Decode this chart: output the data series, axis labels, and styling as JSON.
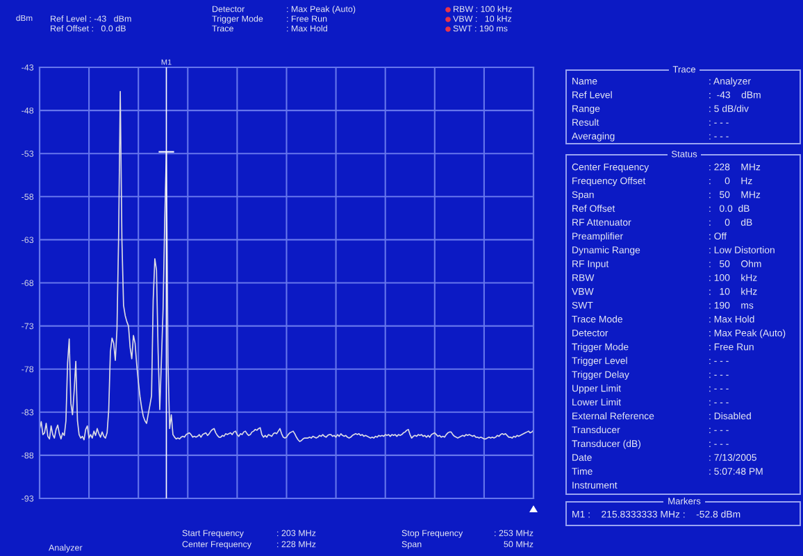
{
  "chart_data": {
    "type": "line",
    "color": "#dcdce4",
    "line_style": "solid",
    "categories": [
      null,
      null,
      null,
      null,
      null,
      null,
      null,
      null,
      null,
      null,
      null,
      null,
      null,
      null,
      null,
      null,
      null,
      null,
      null,
      null,
      null,
      null,
      null,
      null,
      null,
      null,
      null,
      null,
      null,
      null,
      null,
      null,
      null,
      null,
      null,
      null,
      null,
      null,
      null,
      null,
      null,
      null,
      null,
      null,
      null,
      null,
      null,
      null,
      null,
      null,
      null,
      null,
      null,
      null,
      null,
      null,
      null,
      null,
      null,
      null,
      null,
      null,
      null,
      null,
      null,
      null,
      null,
      null,
      null,
      null,
      null,
      null,
      null,
      null,
      null,
      null,
      null,
      "M1",
      null,
      null,
      null,
      null,
      null,
      null,
      null,
      null,
      null,
      null,
      null,
      null,
      null,
      null,
      null,
      null,
      null,
      null,
      null,
      null,
      null,
      null,
      null,
      null,
      null,
      null,
      null,
      null,
      null,
      null,
      null,
      null,
      null,
      null,
      null,
      null,
      null,
      null,
      null,
      null,
      null,
      null,
      null,
      null,
      null,
      null,
      null,
      null,
      null,
      null,
      null,
      null,
      null,
      null,
      null,
      null,
      null,
      null,
      null,
      null,
      null,
      null,
      null,
      null,
      null,
      null,
      null,
      null,
      null,
      null,
      null,
      null,
      null,
      null,
      null,
      null,
      null,
      null,
      null,
      null,
      null,
      null,
      null,
      null,
      null,
      null,
      null,
      null,
      null,
      null,
      null,
      null,
      null,
      null,
      null,
      null,
      null,
      null,
      null,
      null,
      null,
      null,
      null,
      null,
      null,
      null,
      null,
      null,
      null,
      null,
      null,
      null,
      null,
      null,
      null,
      null,
      null,
      null,
      null,
      null,
      null,
      null,
      null,
      null,
      null,
      null,
      null,
      null,
      null,
      null,
      null,
      null,
      null,
      null,
      null,
      null,
      null,
      null,
      null,
      null,
      null,
      null,
      null,
      null,
      null,
      null,
      null,
      null,
      null,
      null,
      null,
      null,
      null,
      null,
      null,
      null,
      null,
      null,
      null,
      null,
      null,
      null,
      null,
      null,
      null,
      null,
      null,
      null,
      null,
      null,
      null,
      null,
      null,
      null,
      null,
      null,
      null,
      null,
      null,
      null,
      null,
      null,
      null,
      null,
      null,
      null,
      null,
      null,
      null,
      null,
      null,
      null,
      null,
      null,
      null,
      null,
      null,
      null,
      null,
      null,
      null,
      null,
      null,
      null,
      null,
      null,
      null,
      null,
      null,
      null,
      null,
      null,
      null,
      null,
      null,
      null,
      null,
      null,
      null,
      null,
      null,
      null,
      null
    ],
    "values": [
      -85.0,
      -84.1,
      -85.6,
      -85.4,
      -84.3,
      -85.8,
      -86.1,
      -84.6,
      -85.6,
      -86.0,
      -85.0,
      -84.5,
      -85.5,
      -86.1,
      -85.4,
      -85.7,
      -84.0,
      -77.3,
      -74.5,
      -82.0,
      -83.3,
      -80.5,
      -77.1,
      -84.0,
      -85.6,
      -86.0,
      -85.8,
      -86.2,
      -85.0,
      -84.6,
      -86.0,
      -85.6,
      -86.0,
      -85.2,
      -85.7,
      -84.9,
      -85.5,
      -85.9,
      -85.3,
      -85.8,
      -86.0,
      -85.4,
      -82.7,
      -76.0,
      -74.4,
      -75.0,
      -77.0,
      -73.4,
      -62.7,
      -45.8,
      -63.0,
      -70.6,
      -71.8,
      -72.5,
      -73.0,
      -75.5,
      -76.8,
      -74.1,
      -75.0,
      -77.5,
      -79.5,
      -81.2,
      -82.5,
      -83.5,
      -84.0,
      -84.3,
      -83.2,
      -82.2,
      -81.1,
      -70.0,
      -65.2,
      -66.5,
      -76.0,
      -82.7,
      -77.0,
      -71.1,
      -60.8,
      -52.8,
      -77.3,
      -84.9,
      -83.3,
      -85.6,
      -85.9,
      -86.1,
      -86.0,
      -86.1,
      -85.9,
      -85.8,
      -85.9,
      -85.6,
      -85.5,
      -85.4,
      -85.6,
      -85.9,
      -85.8,
      -85.9,
      -85.8,
      -85.6,
      -85.9,
      -85.6,
      -85.5,
      -85.4,
      -85.7,
      -85.5,
      -85.2,
      -85.0,
      -84.9,
      -85.4,
      -85.7,
      -85.9,
      -85.9,
      -85.7,
      -85.8,
      -85.5,
      -85.6,
      -85.5,
      -85.4,
      -85.6,
      -85.3,
      -85.2,
      -85.6,
      -85.8,
      -85.5,
      -85.6,
      -85.3,
      -85.2,
      -85.5,
      -85.7,
      -85.6,
      -85.3,
      -85.2,
      -85.0,
      -85.1,
      -84.9,
      -84.8,
      -85.6,
      -85.9,
      -85.7,
      -85.9,
      -85.6,
      -85.7,
      -85.8,
      -85.5,
      -85.4,
      -85.5,
      -85.2,
      -84.9,
      -85.5,
      -85.9,
      -86.0,
      -85.9,
      -85.6,
      -85.4,
      -85.3,
      -85.2,
      -85.5,
      -85.9,
      -86.2,
      -86.4,
      -86.3,
      -86.1,
      -86.0,
      -86.0,
      -86.0,
      -85.9,
      -86.0,
      -85.8,
      -85.9,
      -86.0,
      -85.9,
      -85.7,
      -85.8,
      -85.6,
      -85.8,
      -85.9,
      -85.7,
      -85.6,
      -85.6,
      -85.8,
      -85.7,
      -85.9,
      -85.6,
      -85.8,
      -85.5,
      -85.7,
      -85.8,
      -85.7,
      -85.9,
      -86.0,
      -85.9,
      -85.7,
      -85.6,
      -85.5,
      -85.6,
      -85.5,
      -85.7,
      -85.6,
      -85.8,
      -85.7,
      -85.8,
      -85.9,
      -86.0,
      -85.9,
      -86.0,
      -85.8,
      -85.9,
      -85.7,
      -85.8,
      -85.7,
      -85.8,
      -85.6,
      -85.7,
      -85.6,
      -85.8,
      -85.6,
      -85.7,
      -85.6,
      -85.8,
      -85.6,
      -85.7,
      -85.6,
      -85.4,
      -85.3,
      -85.1,
      -85.0,
      -85.6,
      -86.0,
      -85.8,
      -85.7,
      -85.8,
      -85.6,
      -85.7,
      -85.6,
      -85.8,
      -85.7,
      -85.9,
      -85.7,
      -85.9,
      -85.6,
      -85.5,
      -85.4,
      -85.6,
      -85.8,
      -85.7,
      -85.9,
      -85.8,
      -85.9,
      -85.6,
      -85.4,
      -85.3,
      -85.3,
      -85.6,
      -85.8,
      -85.9,
      -86.0,
      -85.9,
      -85.8,
      -85.7,
      -85.8,
      -85.6,
      -85.7,
      -85.6,
      -85.7,
      -85.8,
      -85.7,
      -85.9,
      -85.9,
      -86.0,
      -85.9,
      -86.0,
      -86.1,
      -86.1,
      -86.0,
      -85.9,
      -86.0,
      -85.9,
      -86.0,
      -85.9,
      -85.7,
      -85.8,
      -85.6,
      -85.5,
      -85.6,
      -85.5,
      -85.7,
      -85.9,
      -85.9,
      -86.0,
      -85.8,
      -85.9,
      -85.7,
      -85.8,
      -85.7,
      -85.6,
      -85.5,
      -85.4,
      -85.3,
      -85.2,
      -85.4,
      -85.3,
      -85.1
    ],
    "ylim": [
      -93,
      -43
    ],
    "yticks": [
      -43,
      -48,
      -53,
      -58,
      -63,
      -68,
      -73,
      -78,
      -83,
      -88,
      -93
    ],
    "grid": true,
    "ref_lines": [
      {
        "axis": "x",
        "value": "M1",
        "color": "#ffffff"
      }
    ],
    "annotations": [
      "dBm",
      "Ref Level : -43   dBm",
      "Ref Offset :   0.0 dB",
      "Detector",
      "Trigger Mode",
      "Trace",
      ": Max Peak (Auto)",
      ": Free Run",
      ": Max Hold",
      "RBW : 100 kHz",
      "VBW :   10 kHz",
      "SWT : 190 ms",
      "Analyzer",
      "Start Frequency",
      "Center Frequency",
      ": 203 MHz",
      ": 228 MHz",
      "Stop Frequency",
      "Span",
      ": 253 MHz",
      "50 MHz",
      "Trace",
      "Name",
      "Ref Level",
      "Range",
      "Result",
      "Averaging",
      ": Analyzer",
      ":  -43    dBm",
      ": 5 dB/div",
      ": - - -",
      ": - - -",
      "Status",
      "Center Frequency",
      "Frequency Offset",
      "Span",
      "Ref Offset",
      "RF Attenuator",
      "Preamplifier",
      "Dynamic Range",
      "RF Input",
      "RBW",
      "VBW",
      "SWT",
      "Trace Mode",
      "Detector",
      "Trigger Mode",
      "Trigger Level",
      "Trigger Delay",
      "Upper Limit",
      "Lower Limit",
      "External Reference",
      "Transducer",
      "Transducer (dB)",
      "Date",
      "Time",
      "Instrument",
      ": 228    MHz",
      ":     0    Hz",
      ":   50    MHz",
      ":   0.0  dB",
      ":     0    dB",
      ": Off",
      ": Low Distortion",
      ":   50    Ohm",
      ": 100    kHz",
      ":   10    kHz",
      ": 190    ms",
      ": Max Hold",
      ": Max Peak (Auto)",
      ": Free Run",
      ": - - -",
      ": - - -",
      ": - - -",
      ": - - -",
      ": Disabled",
      ": - - -",
      ": - - -",
      ": 7/13/2005",
      ": 5:07:48 PM",
      "Markers",
      "M1 :    215.8333333 MHz :    -52.8 dBm"
    ]
  }
}
